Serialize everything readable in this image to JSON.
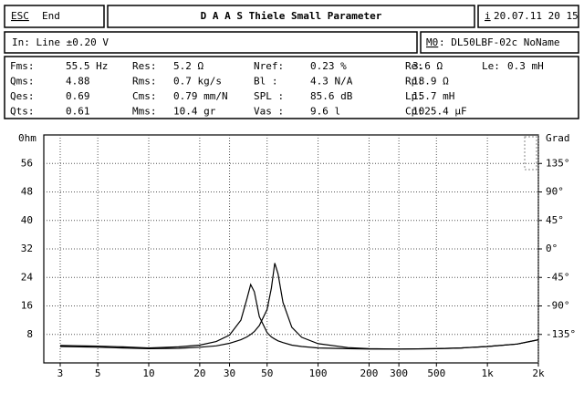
{
  "header": {
    "esc": "ESC",
    "end": "End",
    "title": "D A A S  Thiele Small Parameter",
    "info_key": "i",
    "datetime": "20.07.11 20 15"
  },
  "input": {
    "text": "In: Line  ±0.20 V",
    "model_key": "M0",
    "model": ": DL50LBF-02c NoName"
  },
  "params": [
    [
      {
        "label": "Fms:",
        "value": "55.5 Hz"
      },
      {
        "label": "Res:",
        "value": "5.2 Ω"
      },
      {
        "label": "Nref:",
        "value": "0.23 %"
      },
      {
        "label": "Re:",
        "value": "3.6 Ω"
      },
      {
        "label": "Le:",
        "value": "0.3 mH"
      }
    ],
    [
      {
        "label": "Qms:",
        "value": "4.88"
      },
      {
        "label": "Rms:",
        "value": "0.7 kg/s"
      },
      {
        "label": "Bl :",
        "value": "4.3 N/A"
      },
      {
        "label": "Rp:",
        "value": "18.9 Ω"
      }
    ],
    [
      {
        "label": "Qes:",
        "value": "0.69"
      },
      {
        "label": "Cms:",
        "value": "0.79 mm/N"
      },
      {
        "label": "SPL :",
        "value": "85.6 dB"
      },
      {
        "label": "Lp:",
        "value": "15.7 mH"
      }
    ],
    [
      {
        "label": "Qts:",
        "value": "0.61"
      },
      {
        "label": "Mms:",
        "value": "10.4 gr"
      },
      {
        "label": "Vas :",
        "value": "9.6 l"
      },
      {
        "label": "Cp:",
        "value": "1025.4 µF"
      }
    ]
  ],
  "chart_data": {
    "type": "line",
    "ylabel": "0hm",
    "y2label": "Grad",
    "log_x": true,
    "grid": true,
    "x": [
      3,
      5,
      7,
      10,
      15,
      20,
      25,
      30,
      35,
      38,
      40,
      42,
      45,
      50,
      53,
      55.5,
      58,
      62,
      70,
      80,
      100,
      150,
      200,
      300,
      500,
      700,
      1000,
      1500,
      2000
    ],
    "series": [
      {
        "color": "#000000",
        "values": [
          4.6,
          4.4,
          4.2,
          4.0,
          4.1,
          4.4,
          4.8,
          5.5,
          6.5,
          7.3,
          8,
          8.8,
          10.5,
          15,
          21,
          28,
          25,
          17,
          10,
          7.2,
          5.4,
          4.3,
          4.0,
          3.9,
          4.0,
          4.2,
          4.6,
          5.3,
          6.5
        ]
      },
      {
        "color": "#000000",
        "values": [
          4.9,
          4.7,
          4.5,
          4.2,
          4.5,
          5.0,
          6.0,
          7.8,
          12,
          18,
          22,
          20,
          13,
          8.5,
          7.3,
          6.7,
          6.2,
          5.7,
          5.0,
          4.6,
          4.2,
          4.0,
          3.9,
          3.9,
          4.0,
          4.2,
          4.6,
          5.3,
          6.5
        ]
      }
    ],
    "xlim": [
      2.4,
      2000
    ],
    "xticks": [
      3,
      5,
      10,
      20,
      30,
      50,
      100,
      200,
      300,
      500,
      {
        "value": 1000,
        "label": "1k"
      },
      {
        "value": 2000,
        "label": "2k"
      }
    ],
    "ylim": [
      0,
      64
    ],
    "yticks": [
      8,
      16,
      24,
      32,
      40,
      48,
      56
    ],
    "y2lim": [
      -180,
      180
    ],
    "y2ticks": [
      {
        "value": -135,
        "label": "-135°"
      },
      {
        "value": -90,
        "label": "-90°"
      },
      {
        "value": -45,
        "label": "-45°"
      },
      {
        "value": 0,
        "label": "0°"
      },
      {
        "value": 45,
        "label": "45°"
      },
      {
        "value": 90,
        "label": "90°"
      },
      {
        "value": 135,
        "label": "135°"
      }
    ]
  }
}
